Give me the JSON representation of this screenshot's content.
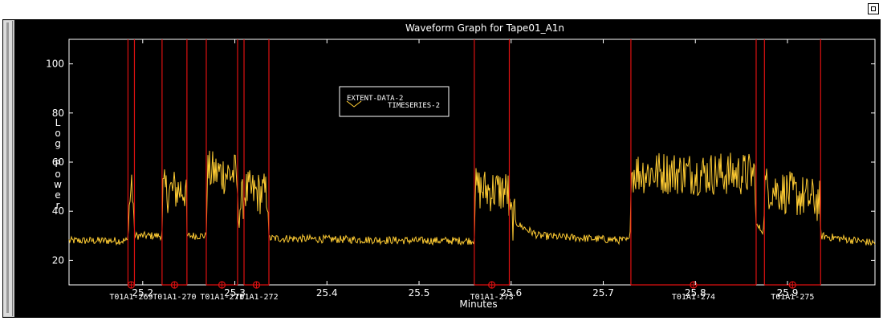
{
  "window": {
    "restore_icon": "restore-window-icon"
  },
  "colors": {
    "background": "#000000",
    "waveform": "#ffcc33",
    "segment": "#dd1111",
    "axis": "#ffffff",
    "text": "#ffffff"
  },
  "chart_data": {
    "type": "line",
    "title": "Waveform Graph for Tape01_A1n",
    "xlabel": "Minutes",
    "ylabel": "Log Power",
    "xlim": [
      25.12,
      25.995
    ],
    "ylim": [
      10,
      110
    ],
    "x_ticks": [
      "25.2",
      "25.3",
      "25.4",
      "25.5",
      "25.6",
      "25.7",
      "25.8",
      "25.9"
    ],
    "x_tick_values": [
      25.2,
      25.3,
      25.4,
      25.5,
      25.6,
      25.7,
      25.8,
      25.9
    ],
    "y_ticks": [
      "20",
      "40",
      "60",
      "80",
      "100"
    ],
    "y_tick_values": [
      20,
      40,
      60,
      80,
      100
    ],
    "grid": false,
    "baseline_level": 28,
    "series": [
      {
        "name": "TIMESERIES-2",
        "color": "#ffcc33",
        "envelope": [
          {
            "x": 25.12,
            "y": 28
          },
          {
            "x": 25.184,
            "y": 28
          },
          {
            "x": 25.185,
            "y": 40
          },
          {
            "x": 25.188,
            "y": 52
          },
          {
            "x": 25.19,
            "y": 42
          },
          {
            "x": 25.191,
            "y": 30
          },
          {
            "x": 25.221,
            "y": 30
          },
          {
            "x": 25.222,
            "y": 48
          },
          {
            "x": 25.247,
            "y": 49
          },
          {
            "x": 25.248,
            "y": 30
          },
          {
            "x": 25.269,
            "y": 30
          },
          {
            "x": 25.27,
            "y": 56
          },
          {
            "x": 25.302,
            "y": 55
          },
          {
            "x": 25.303,
            "y": 40
          },
          {
            "x": 25.31,
            "y": 46
          },
          {
            "x": 25.311,
            "y": 48
          },
          {
            "x": 25.336,
            "y": 47
          },
          {
            "x": 25.337,
            "y": 29
          },
          {
            "x": 25.5,
            "y": 28
          },
          {
            "x": 25.56,
            "y": 28
          },
          {
            "x": 25.561,
            "y": 49
          },
          {
            "x": 25.597,
            "y": 48
          },
          {
            "x": 25.598,
            "y": 38
          },
          {
            "x": 25.61,
            "y": 34
          },
          {
            "x": 25.63,
            "y": 30
          },
          {
            "x": 25.729,
            "y": 28
          },
          {
            "x": 25.73,
            "y": 56
          },
          {
            "x": 25.865,
            "y": 55
          },
          {
            "x": 25.866,
            "y": 34
          },
          {
            "x": 25.874,
            "y": 32
          },
          {
            "x": 25.875,
            "y": 50
          },
          {
            "x": 25.935,
            "y": 44
          },
          {
            "x": 25.936,
            "y": 30
          },
          {
            "x": 25.995,
            "y": 27
          }
        ]
      }
    ],
    "segments": [
      {
        "label": "T01A1-269",
        "start": 25.184,
        "end": 25.191,
        "center": 25.1875
      },
      {
        "label": "T01A1-270",
        "start": 25.221,
        "end": 25.248,
        "center": 25.2345
      },
      {
        "label": "T01A1-271",
        "start": 25.269,
        "end": 25.303,
        "center": 25.286
      },
      {
        "label": "T01A1-272",
        "start": 25.31,
        "end": 25.337,
        "center": 25.3235
      },
      {
        "label": "T01A1-273",
        "start": 25.56,
        "end": 25.598,
        "center": 25.579
      },
      {
        "label": "T01A1-274",
        "start": 25.73,
        "end": 25.866,
        "center": 25.798
      },
      {
        "label": "T01A1-275",
        "start": 25.875,
        "end": 25.936,
        "center": 25.9055
      }
    ],
    "segment_marker_level": 10,
    "legend": {
      "placement": "upper-left",
      "entries": [
        "EXTENT-DATA-2",
        "TIMESERIES-2"
      ]
    }
  }
}
